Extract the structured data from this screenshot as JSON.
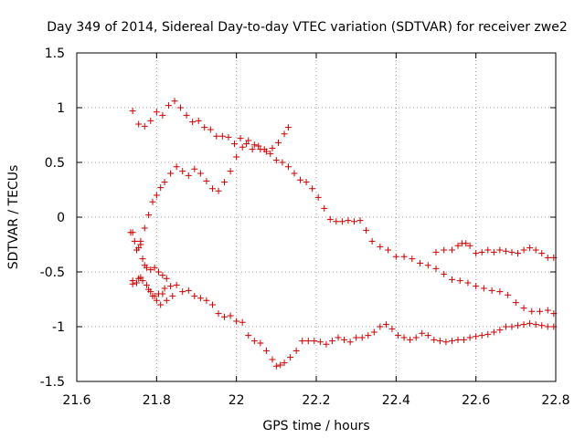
{
  "chart_data": {
    "type": "scatter",
    "title": "Day 349 of 2014, Sidereal Day-to-day VTEC variation (SDTVAR) for receiver zwe2",
    "xlabel": "GPS time / hours",
    "ylabel": "SDTVAR / TECUs",
    "xlim": [
      21.6,
      22.8
    ],
    "ylim": [
      -1.5,
      1.5
    ],
    "xticks": [
      "21.6",
      "21.8",
      "22",
      "22.2",
      "22.4",
      "22.6",
      "22.8"
    ],
    "yticks": [
      "-1.5",
      "-1",
      "-0.5",
      "0",
      "0.5",
      "1",
      "1.5"
    ],
    "grid": true,
    "marker": "+",
    "color": "#cc0000",
    "series": [
      {
        "name": "track-1",
        "x": [
          21.74,
          21.755,
          21.77,
          21.785,
          21.8,
          21.815,
          21.83,
          21.845,
          21.86,
          21.875,
          21.89,
          21.905,
          21.92,
          21.935,
          21.95,
          21.965,
          21.98,
          21.995,
          22.01,
          22.025,
          22.04,
          22.055,
          22.07,
          22.085,
          22.1,
          22.115,
          22.13,
          22.145,
          22.16,
          22.175,
          22.19,
          22.205,
          22.22,
          22.235,
          22.25,
          22.265,
          22.28,
          22.295,
          22.31,
          22.325,
          22.34,
          22.36,
          22.38,
          22.4,
          22.42,
          22.44,
          22.46,
          22.48,
          22.5,
          22.52,
          22.54,
          22.56,
          22.58,
          22.6,
          22.62,
          22.64,
          22.66,
          22.68,
          22.7,
          22.72,
          22.74,
          22.76,
          22.78,
          22.795
        ],
        "y": [
          0.97,
          0.85,
          0.83,
          0.88,
          0.96,
          0.93,
          1.02,
          1.06,
          1.0,
          0.93,
          0.87,
          0.88,
          0.82,
          0.8,
          0.74,
          0.74,
          0.73,
          0.67,
          0.72,
          0.67,
          0.62,
          0.65,
          0.62,
          0.58,
          0.52,
          0.5,
          0.46,
          0.4,
          0.34,
          0.32,
          0.26,
          0.18,
          0.08,
          -0.02,
          -0.04,
          -0.04,
          -0.03,
          -0.04,
          -0.03,
          -0.12,
          -0.22,
          -0.27,
          -0.3,
          -0.36,
          -0.36,
          -0.38,
          -0.42,
          -0.44,
          -0.47,
          -0.52,
          -0.57,
          -0.58,
          -0.6,
          -0.63,
          -0.65,
          -0.67,
          -0.68,
          -0.71,
          -0.78,
          -0.83,
          -0.86,
          -0.86,
          -0.85,
          -0.88
        ]
      },
      {
        "name": "track-2",
        "x": [
          21.74,
          21.75,
          21.76,
          21.77,
          21.78,
          21.79,
          21.8,
          21.81,
          21.82,
          21.835,
          21.85,
          21.865,
          21.88,
          21.895,
          21.91,
          21.925,
          21.94,
          21.955,
          21.97,
          21.985,
          22.0,
          22.015,
          22.03,
          22.045,
          22.06,
          22.075,
          22.09,
          22.105,
          22.12,
          22.13
        ],
        "y": [
          -0.14,
          -0.3,
          -0.22,
          -0.1,
          0.02,
          0.14,
          0.2,
          0.27,
          0.32,
          0.4,
          0.46,
          0.42,
          0.38,
          0.44,
          0.4,
          0.33,
          0.26,
          0.24,
          0.32,
          0.42,
          0.55,
          0.64,
          0.7,
          0.66,
          0.62,
          0.6,
          0.63,
          0.68,
          0.76,
          0.82
        ]
      },
      {
        "name": "track-3",
        "x": [
          21.74,
          21.75,
          21.76,
          21.775,
          21.79,
          21.805,
          21.82,
          21.835,
          21.85,
          21.865,
          21.88,
          21.895,
          21.91,
          21.925,
          21.94,
          21.955,
          21.97,
          21.985,
          22.0,
          22.015,
          22.03,
          22.045,
          22.06,
          22.075,
          22.09,
          22.1,
          22.11,
          22.12,
          22.135,
          22.15,
          22.165,
          22.18,
          22.195,
          22.21,
          22.225,
          22.24,
          22.255,
          22.27,
          22.285,
          22.3,
          22.315,
          22.33,
          22.345,
          22.36,
          22.375,
          22.39,
          22.405,
          22.42,
          22.435,
          22.45,
          22.465,
          22.48,
          22.495,
          22.51,
          22.525,
          22.54,
          22.555,
          22.57,
          22.585,
          22.6,
          22.615,
          22.63,
          22.645,
          22.66,
          22.675,
          22.69,
          22.705,
          22.72,
          22.735,
          22.75,
          22.765,
          22.78,
          22.795
        ],
        "y": [
          -0.58,
          -0.6,
          -0.55,
          -0.62,
          -0.72,
          -0.7,
          -0.65,
          -0.63,
          -0.62,
          -0.68,
          -0.67,
          -0.72,
          -0.74,
          -0.76,
          -0.8,
          -0.88,
          -0.91,
          -0.9,
          -0.95,
          -0.96,
          -1.08,
          -1.13,
          -1.15,
          -1.22,
          -1.3,
          -1.36,
          -1.35,
          -1.33,
          -1.28,
          -1.22,
          -1.13,
          -1.13,
          -1.13,
          -1.14,
          -1.16,
          -1.13,
          -1.1,
          -1.12,
          -1.14,
          -1.1,
          -1.1,
          -1.08,
          -1.05,
          -1.0,
          -0.98,
          -1.02,
          -1.08,
          -1.1,
          -1.12,
          -1.1,
          -1.06,
          -1.08,
          -1.12,
          -1.13,
          -1.14,
          -1.13,
          -1.12,
          -1.12,
          -1.1,
          -1.09,
          -1.08,
          -1.07,
          -1.05,
          -1.03,
          -1.0,
          -1.0,
          -0.99,
          -0.98,
          -0.97,
          -0.98,
          -0.99,
          -1.0,
          -1.0
        ]
      },
      {
        "name": "track-4",
        "x": [
          21.735,
          21.745,
          21.755,
          21.765,
          21.775,
          21.785,
          21.795,
          21.805,
          21.815,
          21.825
        ],
        "y": [
          -0.14,
          -0.22,
          -0.28,
          -0.38,
          -0.46,
          -0.48,
          -0.46,
          -0.5,
          -0.53,
          -0.56
        ]
      },
      {
        "name": "track-5",
        "x": [
          21.76,
          21.77,
          21.785,
          21.8,
          21.815
        ],
        "y": [
          -0.25,
          -0.44,
          -0.68,
          -0.76,
          -0.7
        ]
      },
      {
        "name": "track-6",
        "x": [
          21.74,
          21.755,
          21.765,
          21.78,
          21.795,
          21.81,
          21.825,
          21.84
        ],
        "y": [
          -0.61,
          -0.56,
          -0.58,
          -0.66,
          -0.72,
          -0.8,
          -0.76,
          -0.72
        ]
      },
      {
        "name": "track-7",
        "x": [
          22.5,
          22.52,
          22.54,
          22.555,
          22.565,
          22.575,
          22.585,
          22.6,
          22.615,
          22.63,
          22.645,
          22.66,
          22.675,
          22.69,
          22.705,
          22.72,
          22.735,
          22.75,
          22.765,
          22.78,
          22.795
        ],
        "y": [
          -0.32,
          -0.3,
          -0.3,
          -0.26,
          -0.24,
          -0.24,
          -0.26,
          -0.33,
          -0.32,
          -0.3,
          -0.32,
          -0.3,
          -0.31,
          -0.32,
          -0.33,
          -0.3,
          -0.28,
          -0.3,
          -0.33,
          -0.37,
          -0.37
        ]
      }
    ]
  }
}
